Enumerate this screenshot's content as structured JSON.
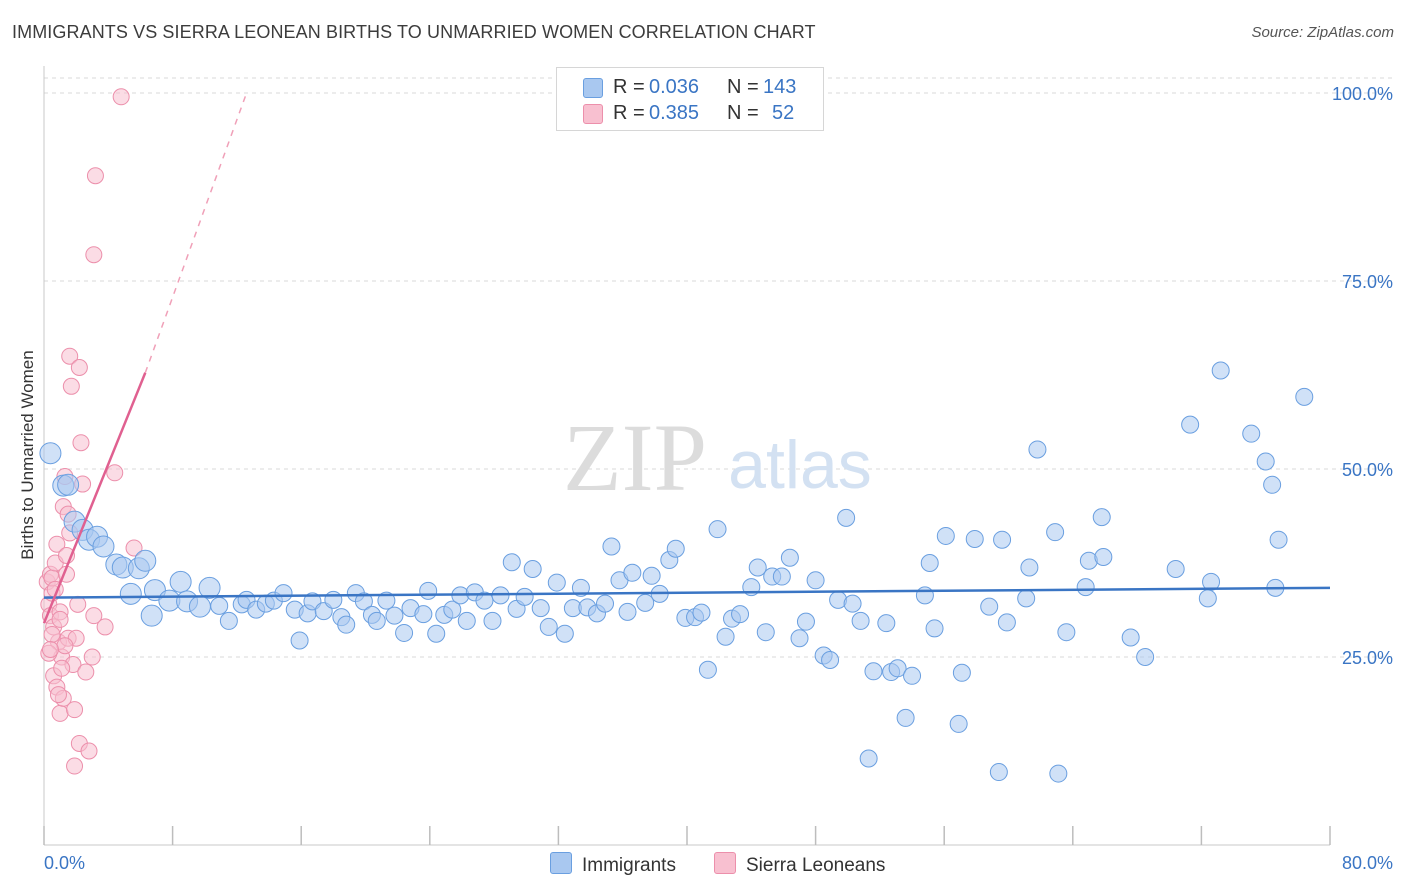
{
  "title": "IMMIGRANTS VS SIERRA LEONEAN BIRTHS TO UNMARRIED WOMEN CORRELATION CHART",
  "source": "Source: ZipAtlas.com",
  "watermark": {
    "zip": "ZIP",
    "atlas": "atlas"
  },
  "legend": {
    "rows": [
      {
        "r_label": "R = ",
        "r_value": "0.036",
        "n_label": "N = ",
        "n_value": "143",
        "color": "#a9c8f0",
        "border": "#6a9fe0"
      },
      {
        "r_label": "R = ",
        "r_value": "0.385",
        "n_label": "N = ",
        "n_value": "52",
        "color": "#f8c0d0",
        "border": "#ec8fab"
      }
    ]
  },
  "colors": {
    "blue_fill": "#a9c8f0",
    "blue_line": "#3a75c4",
    "pink_fill": "#f8c0d0",
    "pink_line": "#e06090",
    "axis_text": "#3a75c4",
    "grid": "#d8d8d8"
  },
  "chart_data": {
    "type": "scatter",
    "title": "IMMIGRANTS VS SIERRA LEONEAN BIRTHS TO UNMARRIED WOMEN CORRELATION CHART",
    "xlabel": "",
    "ylabel": "Births to Unmarried Women",
    "xlim": [
      0,
      80
    ],
    "ylim": [
      0,
      102
    ],
    "x_tick_labels": [
      "0.0%",
      "80.0%"
    ],
    "y_ticks": [
      25,
      50,
      75,
      100
    ],
    "y_tick_labels": [
      "25.0%",
      "50.0%",
      "75.0%",
      "100.0%"
    ],
    "series": [
      {
        "name": "Immigrants",
        "r": 0.036,
        "n": 143,
        "trend": {
          "x": [
            0,
            80
          ],
          "y": [
            32.9,
            34.2
          ]
        },
        "points": [
          [
            0.4,
            52.1
          ],
          [
            1.2,
            47.8
          ],
          [
            1.5,
            47.9
          ],
          [
            1.9,
            43.0
          ],
          [
            2.4,
            41.9
          ],
          [
            2.8,
            40.6
          ],
          [
            3.3,
            41.0
          ],
          [
            3.7,
            39.7
          ],
          [
            4.5,
            37.3
          ],
          [
            4.9,
            36.9
          ],
          [
            5.9,
            36.8
          ],
          [
            6.3,
            37.8
          ],
          [
            5.4,
            33.4
          ],
          [
            6.7,
            30.5
          ],
          [
            6.9,
            33.9
          ],
          [
            7.8,
            32.5
          ],
          [
            8.5,
            35.0
          ],
          [
            8.9,
            32.4
          ],
          [
            9.7,
            31.7
          ],
          [
            10.3,
            34.2
          ],
          [
            10.9,
            31.8
          ],
          [
            11.5,
            29.8
          ],
          [
            12.3,
            32.0
          ],
          [
            12.6,
            32.6
          ],
          [
            13.2,
            31.3
          ],
          [
            13.8,
            32.1
          ],
          [
            14.3,
            32.5
          ],
          [
            14.9,
            33.5
          ],
          [
            15.6,
            31.3
          ],
          [
            15.9,
            27.2
          ],
          [
            16.4,
            30.8
          ],
          [
            16.7,
            32.4
          ],
          [
            17.4,
            31.1
          ],
          [
            18.0,
            32.6
          ],
          [
            18.5,
            30.3
          ],
          [
            18.8,
            29.3
          ],
          [
            19.4,
            33.5
          ],
          [
            19.9,
            32.4
          ],
          [
            20.4,
            30.6
          ],
          [
            20.7,
            29.8
          ],
          [
            21.3,
            32.5
          ],
          [
            21.8,
            30.5
          ],
          [
            22.4,
            28.2
          ],
          [
            22.8,
            31.5
          ],
          [
            23.6,
            30.7
          ],
          [
            23.9,
            33.8
          ],
          [
            24.4,
            28.1
          ],
          [
            24.9,
            30.6
          ],
          [
            25.4,
            31.3
          ],
          [
            25.9,
            33.2
          ],
          [
            26.3,
            29.8
          ],
          [
            26.8,
            33.6
          ],
          [
            27.4,
            32.5
          ],
          [
            27.9,
            29.8
          ],
          [
            28.4,
            33.2
          ],
          [
            29.1,
            37.6
          ],
          [
            29.4,
            31.4
          ],
          [
            29.9,
            33.0
          ],
          [
            30.4,
            36.7
          ],
          [
            30.9,
            31.5
          ],
          [
            31.4,
            29.0
          ],
          [
            31.9,
            34.9
          ],
          [
            32.4,
            28.1
          ],
          [
            32.9,
            31.5
          ],
          [
            33.4,
            34.2
          ],
          [
            33.8,
            31.6
          ],
          [
            34.4,
            30.8
          ],
          [
            34.9,
            32.1
          ],
          [
            35.3,
            39.7
          ],
          [
            35.8,
            35.2
          ],
          [
            36.3,
            31.0
          ],
          [
            36.6,
            36.2
          ],
          [
            37.4,
            32.2
          ],
          [
            37.8,
            35.8
          ],
          [
            38.3,
            33.4
          ],
          [
            38.9,
            37.9
          ],
          [
            39.3,
            39.4
          ],
          [
            39.9,
            30.2
          ],
          [
            40.5,
            30.3
          ],
          [
            40.9,
            30.9
          ],
          [
            41.3,
            23.3
          ],
          [
            41.9,
            42.0
          ],
          [
            42.4,
            27.7
          ],
          [
            42.8,
            30.1
          ],
          [
            43.3,
            30.7
          ],
          [
            44.0,
            34.3
          ],
          [
            44.4,
            36.9
          ],
          [
            44.9,
            28.3
          ],
          [
            45.3,
            35.7
          ],
          [
            45.9,
            35.7
          ],
          [
            46.4,
            38.2
          ],
          [
            47.0,
            27.5
          ],
          [
            47.4,
            29.7
          ],
          [
            48.0,
            35.2
          ],
          [
            48.5,
            25.2
          ],
          [
            48.9,
            24.6
          ],
          [
            49.4,
            32.6
          ],
          [
            49.9,
            43.5
          ],
          [
            50.3,
            32.1
          ],
          [
            50.8,
            29.8
          ],
          [
            51.3,
            11.5
          ],
          [
            51.6,
            23.1
          ],
          [
            52.4,
            29.5
          ],
          [
            52.7,
            23.0
          ],
          [
            53.1,
            23.5
          ],
          [
            53.6,
            16.9
          ],
          [
            54.0,
            22.5
          ],
          [
            54.8,
            33.2
          ],
          [
            55.1,
            37.5
          ],
          [
            55.4,
            28.8
          ],
          [
            56.1,
            41.1
          ],
          [
            56.9,
            16.1
          ],
          [
            57.1,
            22.9
          ],
          [
            57.9,
            40.7
          ],
          [
            58.8,
            31.7
          ],
          [
            59.4,
            9.7
          ],
          [
            59.6,
            40.6
          ],
          [
            59.9,
            29.6
          ],
          [
            61.1,
            32.8
          ],
          [
            61.3,
            36.9
          ],
          [
            61.8,
            52.6
          ],
          [
            62.9,
            41.6
          ],
          [
            63.1,
            9.5
          ],
          [
            63.6,
            28.3
          ],
          [
            64.8,
            34.3
          ],
          [
            65.0,
            37.8
          ],
          [
            65.8,
            43.6
          ],
          [
            65.9,
            38.3
          ],
          [
            67.6,
            27.6
          ],
          [
            68.5,
            25.0
          ],
          [
            70.4,
            36.7
          ],
          [
            71.3,
            55.9
          ],
          [
            72.4,
            32.8
          ],
          [
            72.6,
            35.0
          ],
          [
            73.2,
            63.1
          ],
          [
            75.1,
            54.7
          ],
          [
            76.0,
            51.0
          ],
          [
            76.4,
            47.9
          ],
          [
            76.6,
            34.2
          ],
          [
            76.8,
            40.6
          ],
          [
            78.4,
            59.6
          ]
        ]
      },
      {
        "name": "Sierra Leoneans",
        "r": 0.385,
        "n": 52,
        "trend": {
          "x": [
            0.0,
            6.3
          ],
          "y": [
            29.5,
            62.8
          ],
          "dash_to": {
            "x": 12.6,
            "y": 100
          }
        },
        "points": [
          [
            0.2,
            35.0
          ],
          [
            0.3,
            32.0
          ],
          [
            0.4,
            30.5
          ],
          [
            0.4,
            36.0
          ],
          [
            0.5,
            33.5
          ],
          [
            0.5,
            35.5
          ],
          [
            0.6,
            22.5
          ],
          [
            0.6,
            29.0
          ],
          [
            0.7,
            37.5
          ],
          [
            0.8,
            21.0
          ],
          [
            0.8,
            40.0
          ],
          [
            0.9,
            27.0
          ],
          [
            1.0,
            31.0
          ],
          [
            1.0,
            17.5
          ],
          [
            1.1,
            25.0
          ],
          [
            1.2,
            19.5
          ],
          [
            1.2,
            45.0
          ],
          [
            1.3,
            49.0
          ],
          [
            1.4,
            36.0
          ],
          [
            1.5,
            27.5
          ],
          [
            1.5,
            44.0
          ],
          [
            1.6,
            41.5
          ],
          [
            1.6,
            65.0
          ],
          [
            1.7,
            61.0
          ],
          [
            1.8,
            24.0
          ],
          [
            1.9,
            18.0
          ],
          [
            1.9,
            10.5
          ],
          [
            2.0,
            27.5
          ],
          [
            2.1,
            32.0
          ],
          [
            2.2,
            63.5
          ],
          [
            2.2,
            13.5
          ],
          [
            2.3,
            53.5
          ],
          [
            2.4,
            48.0
          ],
          [
            2.6,
            23.0
          ],
          [
            2.8,
            12.5
          ],
          [
            3.0,
            25.0
          ],
          [
            3.1,
            30.5
          ],
          [
            3.1,
            78.5
          ],
          [
            3.2,
            89.0
          ],
          [
            3.8,
            29.0
          ],
          [
            4.4,
            49.5
          ],
          [
            4.8,
            99.5
          ],
          [
            5.6,
            39.5
          ],
          [
            0.3,
            25.5
          ],
          [
            0.5,
            28.0
          ],
          [
            0.7,
            34.0
          ],
          [
            0.9,
            20.0
          ],
          [
            1.1,
            23.5
          ],
          [
            1.3,
            26.5
          ],
          [
            1.4,
            38.5
          ],
          [
            1.0,
            30.0
          ],
          [
            0.4,
            26.0
          ]
        ]
      }
    ]
  },
  "bottom_legend": [
    {
      "label": "Immigrants",
      "color": "#a9c8f0",
      "border": "#6a9fe0"
    },
    {
      "label": "Sierra Leoneans",
      "color": "#f8c0d0",
      "border": "#ec8fab"
    }
  ]
}
